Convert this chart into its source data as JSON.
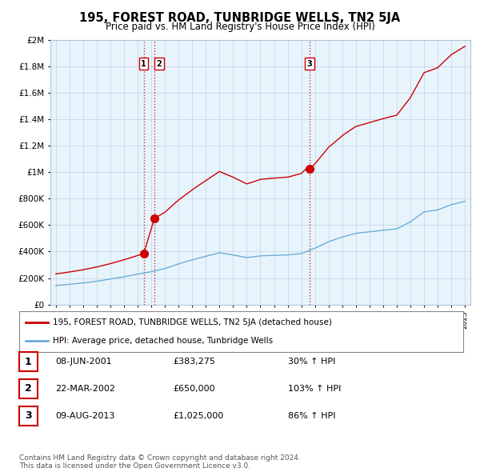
{
  "title": "195, FOREST ROAD, TUNBRIDGE WELLS, TN2 5JA",
  "subtitle": "Price paid vs. HM Land Registry's House Price Index (HPI)",
  "ylabel_ticks": [
    "£0",
    "£200K",
    "£400K",
    "£600K",
    "£800K",
    "£1M",
    "£1.2M",
    "£1.4M",
    "£1.6M",
    "£1.8M",
    "£2M"
  ],
  "ylim": [
    0,
    2000000
  ],
  "ytick_vals": [
    0,
    200000,
    400000,
    600000,
    800000,
    1000000,
    1200000,
    1400000,
    1600000,
    1800000,
    2000000
  ],
  "x_start_year": 1995,
  "x_end_year": 2025,
  "purchase_year_floats": [
    2001.44,
    2002.22,
    2013.61
  ],
  "purchase_prices": [
    383275,
    650000,
    1025000
  ],
  "purchase_labels": [
    "1",
    "2",
    "3"
  ],
  "vline_color": "#cc0000",
  "hpi_color": "#6baed6",
  "price_color": "#cc0000",
  "chart_bg_color": "#e8f4fc",
  "legend_label_price": "195, FOREST ROAD, TUNBRIDGE WELLS, TN2 5JA (detached house)",
  "legend_label_hpi": "HPI: Average price, detached house, Tunbridge Wells",
  "table_rows": [
    [
      "1",
      "08-JUN-2001",
      "£383,275",
      "30% ↑ HPI"
    ],
    [
      "2",
      "22-MAR-2002",
      "£650,000",
      "103% ↑ HPI"
    ],
    [
      "3",
      "09-AUG-2013",
      "£1,025,000",
      "86% ↑ HPI"
    ]
  ],
  "footer_text": "Contains HM Land Registry data © Crown copyright and database right 2024.\nThis data is licensed under the Open Government Licence v3.0.",
  "background_color": "#ffffff",
  "grid_color": "#b0c4d8"
}
